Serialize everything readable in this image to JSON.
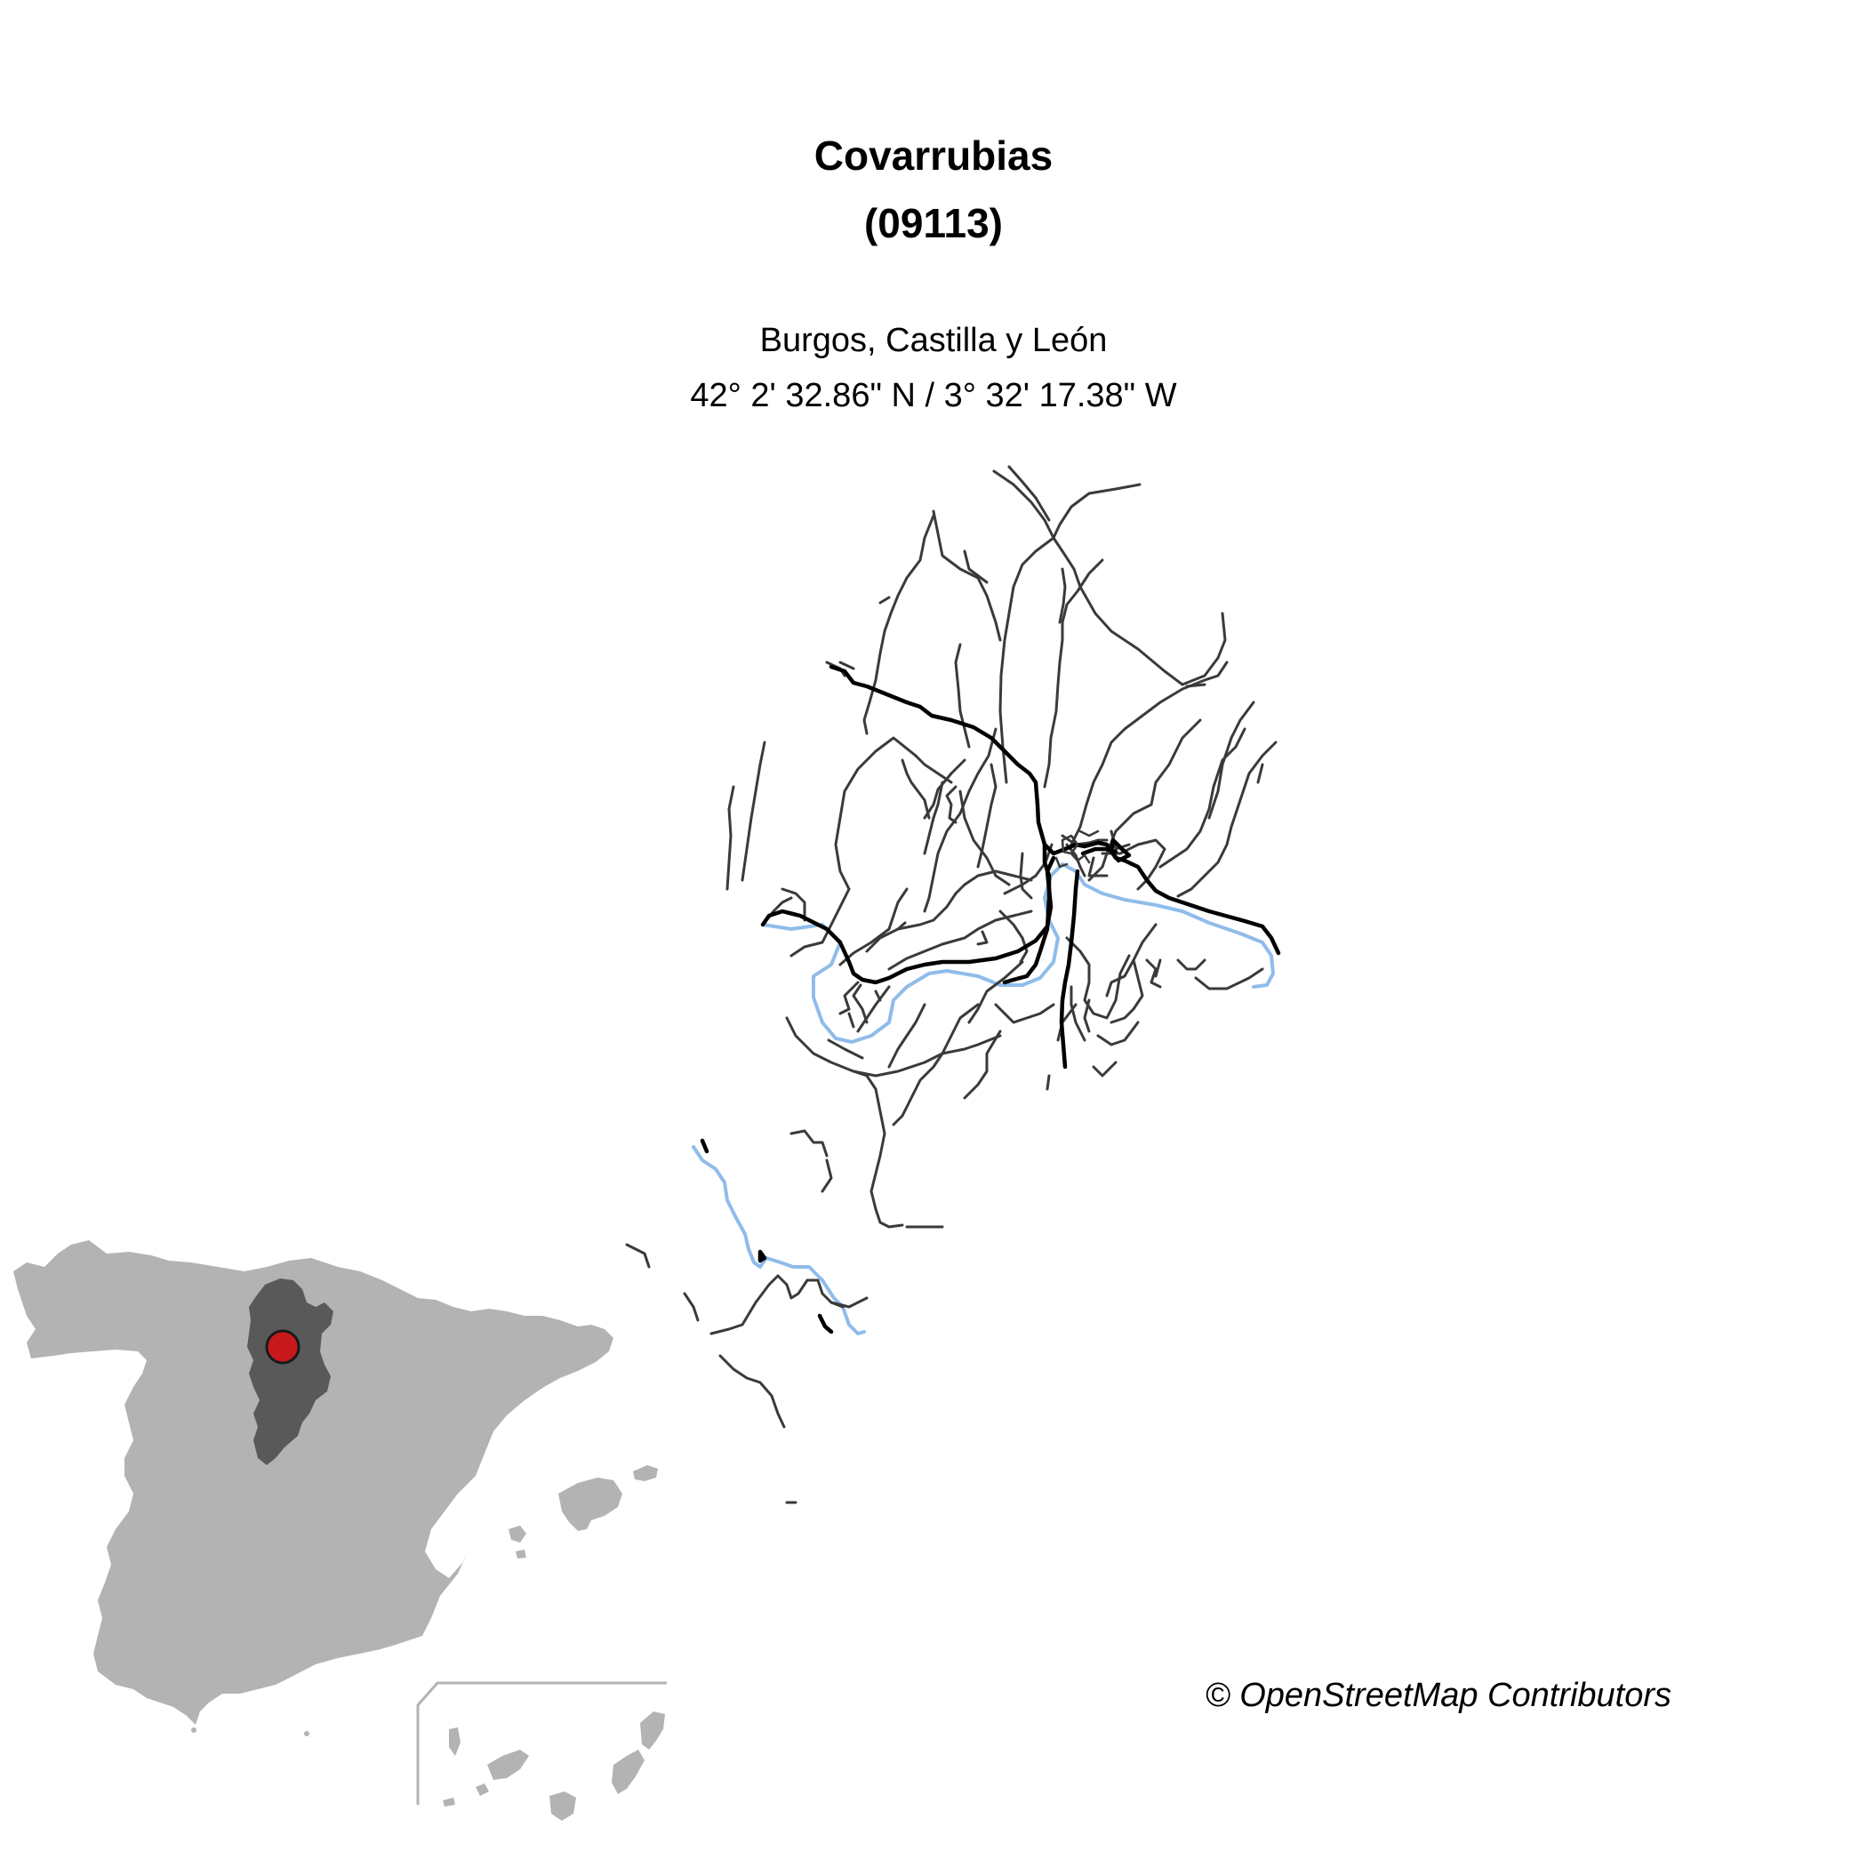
{
  "map": {
    "title_line1": "Covarrubias",
    "title_line2": "(09113)",
    "subtitle_line1": "Burgos, Castilla y León",
    "subtitle_line2": "42° 2' 32.86\" N / 3° 32' 17.38\" W",
    "credit": "© OpenStreetMap Contributors",
    "colors": {
      "background": "#ffffff",
      "road_primary": "#000000",
      "road_track": "#3a3a3a",
      "river": "#8fbcea",
      "country_fill": "#b3b3b3",
      "province_fill": "#595959",
      "marker_fill": "#c8191d",
      "marker_stroke": "#1a1a1a",
      "inset_frame": "#b3b3b3"
    }
  },
  "inset": {
    "country": "Spain",
    "highlighted_province": "Burgos",
    "marker": "municipality-location-marker"
  }
}
